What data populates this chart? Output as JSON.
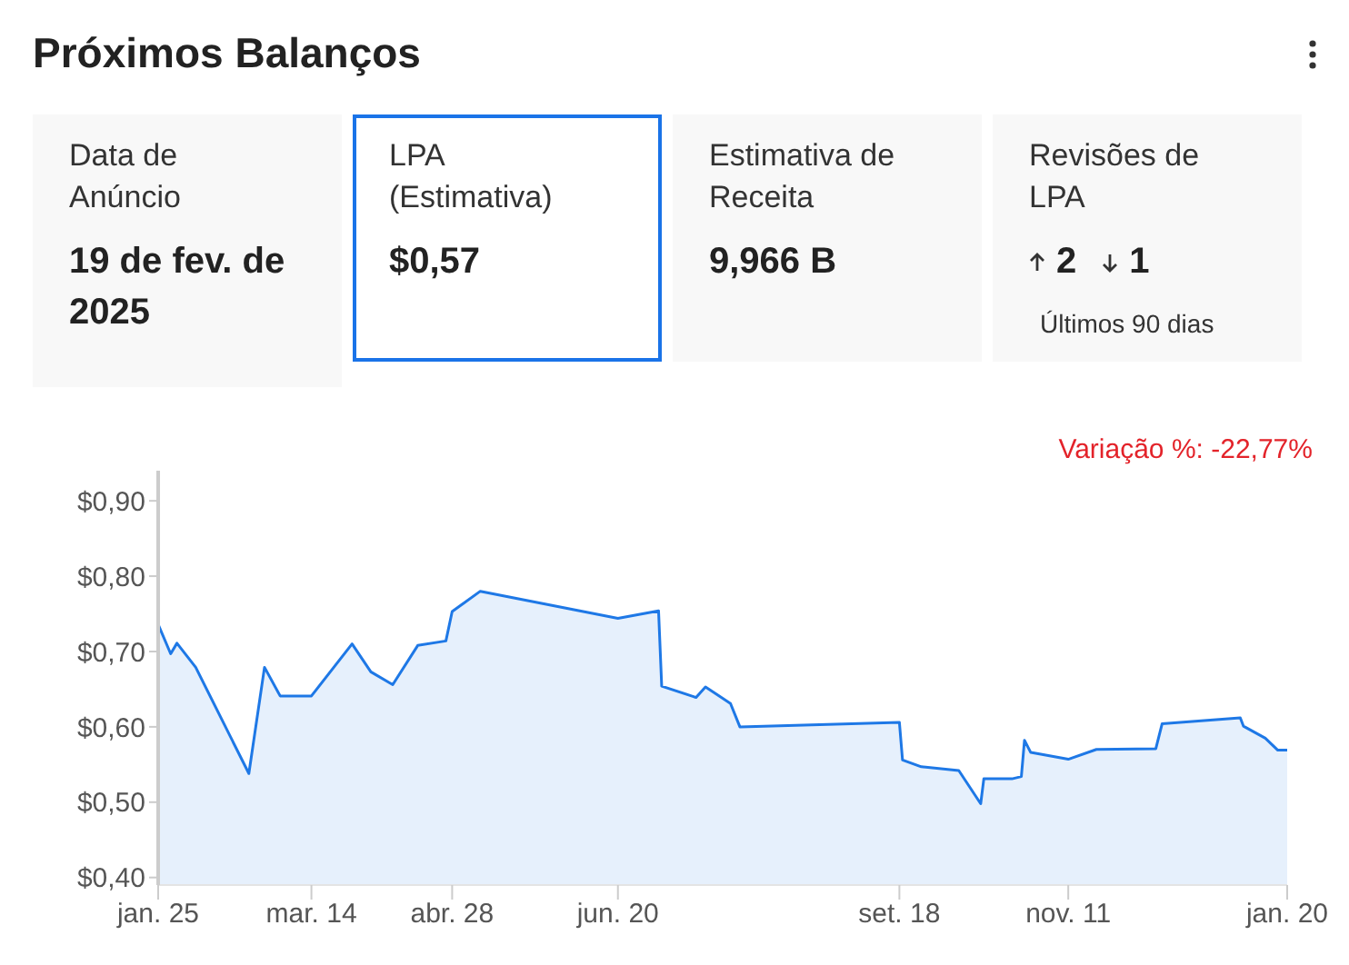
{
  "chart_data": [
    {
      "type": "other",
      "title": "Próximos Balanços",
      "annotations": [
        "Data de Anúncio",
        "19 de fev. de 2025",
        "LPA (Estimativa)",
        "$0,57",
        "Estimativa de Receita",
        "9,966 B",
        "Revisões de LPA",
        "2",
        "1",
        "Últimos 90 dias"
      ]
    },
    {
      "type": "area",
      "annotations": [
        "Variação %: -22,77%"
      ],
      "x": [
        "2024-01-25",
        "2024-01-29",
        "2024-01-31",
        "2024-02-06",
        "2024-02-23",
        "2024-02-28",
        "2024-03-04",
        "2024-03-14",
        "2024-03-27",
        "2024-04-02",
        "2024-04-09",
        "2024-04-17",
        "2024-04-26",
        "2024-04-28",
        "2024-05-07",
        "2024-06-20",
        "2024-07-03",
        "2024-07-04",
        "2024-07-15",
        "2024-07-18",
        "2024-07-26",
        "2024-07-29",
        "2024-09-18",
        "2024-09-19",
        "2024-09-25",
        "2024-10-07",
        "2024-10-14",
        "2024-10-15",
        "2024-10-24",
        "2024-10-27",
        "2024-10-28",
        "2024-10-30",
        "2024-11-11",
        "2024-11-20",
        "2024-12-09",
        "2024-12-11",
        "2025-01-05",
        "2025-01-06",
        "2025-01-13",
        "2025-01-17",
        "2025-01-20"
      ],
      "series": [
        {
          "color": "#1e78e6",
          "values": [
            0.736,
            0.697,
            0.711,
            0.679,
            0.538,
            0.679,
            0.641,
            0.641,
            0.71,
            0.673,
            0.656,
            0.708,
            0.714,
            0.753,
            0.78,
            0.744,
            0.754,
            0.654,
            0.639,
            0.653,
            0.631,
            0.6,
            0.606,
            0.556,
            0.547,
            0.542,
            0.498,
            0.531,
            0.531,
            0.534,
            0.582,
            0.566,
            0.557,
            0.57,
            0.571,
            0.604,
            0.612,
            0.601,
            0.585,
            0.569,
            0.569
          ]
        }
      ],
      "xlim": [
        "2024-01-25",
        "2025-01-20"
      ],
      "xticks": [
        {
          "value": "2024-01-25",
          "label": "jan. 25"
        },
        {
          "value": "2024-03-14",
          "label": "mar. 14"
        },
        {
          "value": "2024-04-28",
          "label": "abr. 28"
        },
        {
          "value": "2024-06-20",
          "label": "jun. 20"
        },
        {
          "value": "2024-09-18",
          "label": "set. 18"
        },
        {
          "value": "2024-11-11",
          "label": "nov. 11"
        },
        {
          "value": "2025-01-20",
          "label": "jan. 20"
        }
      ],
      "ylim": [
        0.39,
        0.94
      ],
      "yticks": [
        {
          "value": 0.4,
          "label": "$0,40"
        },
        {
          "value": 0.5,
          "label": "$0,50"
        },
        {
          "value": 0.6,
          "label": "$0,60"
        },
        {
          "value": 0.7,
          "label": "$0,70"
        },
        {
          "value": 0.8,
          "label": "$0,80"
        },
        {
          "value": 0.9,
          "label": "$0,90"
        }
      ],
      "marker": "none",
      "line_style": "solid"
    }
  ]
}
